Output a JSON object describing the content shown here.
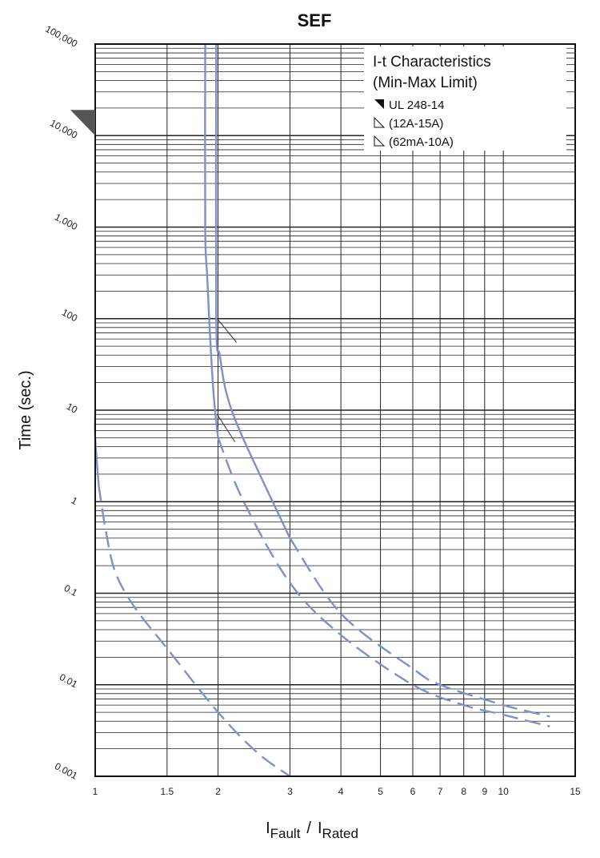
{
  "chart_data": {
    "type": "line",
    "title": "SEF",
    "ylabel": "Time (sec.)",
    "xlabel": {
      "main": "I",
      "sub1": "Fault",
      "sep": "/",
      "main2": "I",
      "sub2": "Rated"
    },
    "x_scale": "log",
    "y_scale": "log",
    "xlim": [
      1,
      15
    ],
    "ylim": [
      0.001,
      100000
    ],
    "x_ticks": [
      1,
      1.5,
      2,
      3,
      4,
      5,
      6,
      7,
      8,
      9,
      10,
      15
    ],
    "x_tick_labels": [
      "1",
      "1.5",
      "2",
      "3",
      "4",
      "5",
      "6",
      "7",
      "8",
      "9",
      "10",
      "15"
    ],
    "y_ticks": [
      0.001,
      0.01,
      0.1,
      1,
      10,
      100,
      1000,
      10000,
      100000
    ],
    "y_tick_labels": [
      "0.001",
      "0.01",
      "0.1",
      "1",
      "10",
      "100",
      "1,000",
      "10,000",
      "100,000"
    ],
    "grid": true,
    "legend": {
      "placement": "top-right",
      "heading_line1": "I-t Characteristics",
      "heading_line2": "(Min-Max Limit)",
      "items": [
        {
          "label": "UL 248-14",
          "marker": "filled-triangle"
        },
        {
          "label": "(12A-15A)",
          "marker": "outline-triangle"
        },
        {
          "label": "(62mA-10A)",
          "marker": "outline-triangle"
        }
      ]
    },
    "ul_marker_time": 10000,
    "colors": {
      "curve": "#7f90cc",
      "grid": "#222222",
      "marker": "#555555"
    },
    "series": [
      {
        "group": "(62mA-10A)",
        "limit": "min",
        "style": "solid-then-dashed",
        "points": [
          [
            1.0,
            10
          ],
          [
            1.0,
            5
          ],
          [
            1.02,
            1.5
          ],
          [
            1.06,
            0.5
          ],
          [
            1.12,
            0.17
          ],
          [
            1.25,
            0.07
          ],
          [
            1.5,
            0.025
          ],
          [
            2.0,
            0.005
          ],
          [
            2.5,
            0.0018
          ],
          [
            3.0,
            0.001
          ]
        ]
      },
      {
        "group": "(12A-15A)",
        "limit": "min",
        "style": "solid-then-dashed",
        "points": [
          [
            1.86,
            100000
          ],
          [
            1.86,
            1000
          ],
          [
            1.88,
            300
          ],
          [
            1.91,
            70
          ],
          [
            1.95,
            15
          ],
          [
            2.0,
            5
          ],
          [
            2.3,
            1.05
          ],
          [
            3.0,
            0.13
          ],
          [
            4.0,
            0.035
          ],
          [
            6.0,
            0.01
          ],
          [
            8.0,
            0.006
          ],
          [
            10.0,
            0.0047
          ],
          [
            13.0,
            0.0035
          ]
        ]
      },
      {
        "group": "(12A-15A)",
        "limit": "max",
        "style": "solid-then-dashed",
        "points": [
          [
            1.98,
            100000
          ],
          [
            1.98,
            100
          ],
          [
            2.02,
            40
          ],
          [
            2.1,
            15
          ],
          [
            2.3,
            5
          ],
          [
            3.0,
            0.4
          ],
          [
            4.0,
            0.06
          ],
          [
            6.0,
            0.015
          ],
          [
            7.0,
            0.01
          ],
          [
            10.0,
            0.006
          ],
          [
            13.0,
            0.0045
          ]
        ]
      }
    ]
  }
}
